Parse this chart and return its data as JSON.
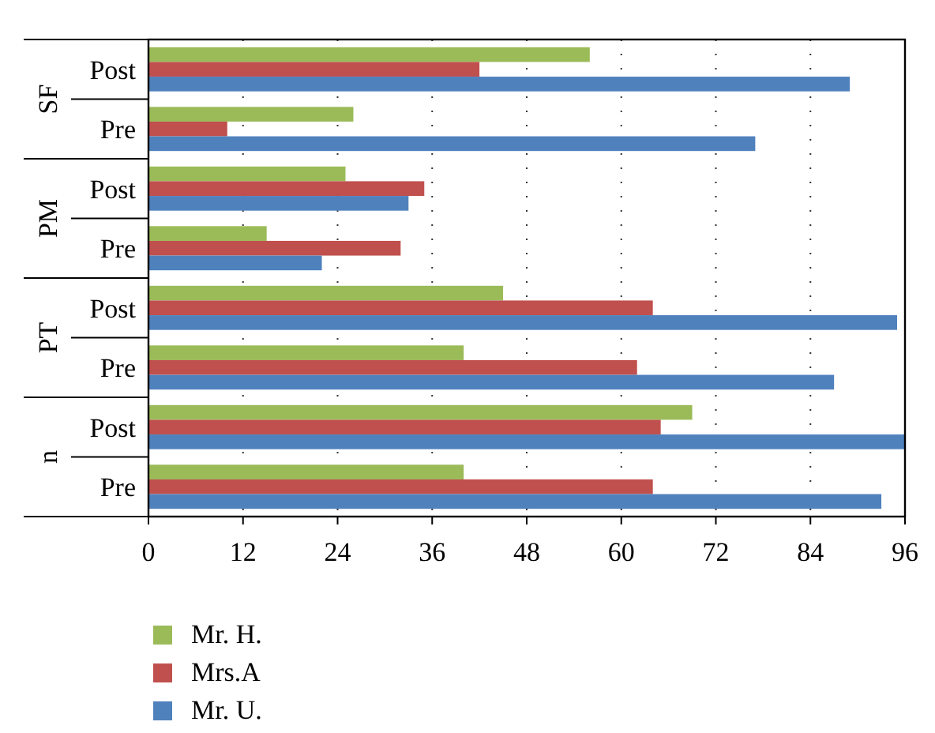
{
  "chart_data": {
    "type": "bar",
    "orientation": "horizontal",
    "categories": [
      "Post",
      "Pre",
      "Post",
      "Pre",
      "Post",
      "Pre",
      "Post",
      "Pre"
    ],
    "annotations": [
      "SF",
      "PM",
      "PT",
      "n"
    ],
    "series": [
      {
        "name": "Mr. H.",
        "color": "#9bbb59",
        "values": [
          56,
          26,
          25,
          15,
          45,
          40,
          69,
          40
        ]
      },
      {
        "name": "Mrs.A",
        "color": "#c0504d",
        "values": [
          42,
          10,
          35,
          32,
          64,
          62,
          65,
          64
        ]
      },
      {
        "name": "Mr. U.",
        "color": "#4f81bd",
        "values": [
          89,
          77,
          33,
          22,
          95,
          87,
          96,
          93
        ]
      }
    ],
    "xlim": [
      0,
      96
    ],
    "xticks": [
      0,
      12,
      24,
      36,
      48,
      60,
      72,
      84,
      96
    ],
    "grid": "x",
    "legend": "bottom"
  }
}
